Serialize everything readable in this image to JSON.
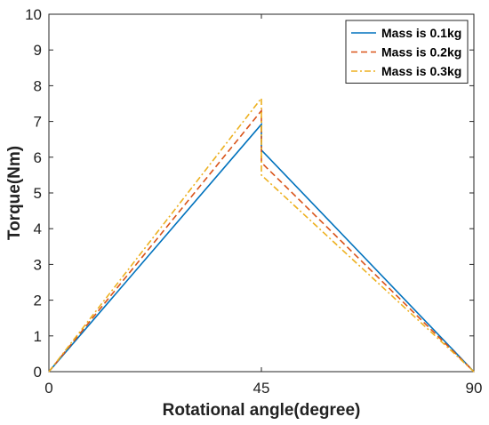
{
  "chart_data": {
    "type": "line",
    "xlabel": "Rotational angle(degree)",
    "ylabel": "Torque(Nm)",
    "xlim": [
      0,
      90
    ],
    "ylim": [
      0,
      10
    ],
    "x_ticks": [
      "0",
      "45",
      "90"
    ],
    "y_ticks": [
      "0",
      "1",
      "2",
      "3",
      "4",
      "5",
      "6",
      "7",
      "8",
      "9",
      "10"
    ],
    "grid": false,
    "legend_position": "top-right",
    "series": [
      {
        "name": "Mass is 0.1kg",
        "color": "#0072BD",
        "style": "solid",
        "x": [
          0,
          45,
          45,
          90
        ],
        "y": [
          0,
          6.92,
          6.2,
          0
        ]
      },
      {
        "name": "Mass is 0.2kg",
        "color": "#D95319",
        "style": "dashed",
        "x": [
          0,
          45,
          45,
          90
        ],
        "y": [
          0,
          7.3,
          5.85,
          0
        ]
      },
      {
        "name": "Mass is 0.3kg",
        "color": "#EDB120",
        "style": "dashdot",
        "x": [
          0,
          45,
          45,
          90
        ],
        "y": [
          0,
          7.65,
          5.5,
          0
        ]
      }
    ]
  }
}
